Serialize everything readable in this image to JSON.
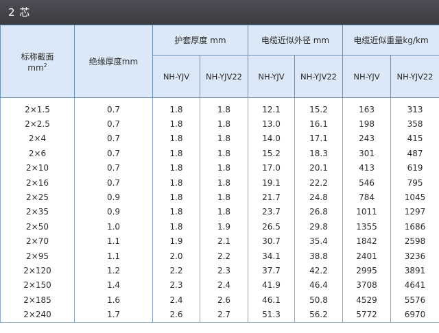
{
  "title": "2 芯",
  "headers": {
    "section": "标称截面",
    "section_unit": "mm",
    "section_unit_sup": "2",
    "insulation": "绝缘厚度mm",
    "sheath": "护套厚度 mm",
    "diameter": "电缆近似外径  mm",
    "weight": "电缆近似重量kg/km",
    "type_a": "NH-YJV",
    "type_b": "NH-YJV22"
  },
  "rows": [
    [
      "2×1.5",
      "0.7",
      "1.8",
      "1.8",
      "12.1",
      "15.2",
      "163",
      "313"
    ],
    [
      "2×2.5",
      "0.7",
      "1.8",
      "1.8",
      "13.0",
      "16.1",
      "198",
      "358"
    ],
    [
      "2×4",
      "0.7",
      "1.8",
      "1.8",
      "14.0",
      "17.1",
      "243",
      "415"
    ],
    [
      "2×6",
      "0.7",
      "1.8",
      "1.8",
      "15.2",
      "18.3",
      "301",
      "487"
    ],
    [
      "2×10",
      "0.7",
      "1.8",
      "1.8",
      "17.0",
      "20.1",
      "413",
      "619"
    ],
    [
      "2×16",
      "0.7",
      "1.8",
      "1.8",
      "19.1",
      "22.2",
      "546",
      "795"
    ],
    [
      "2×25",
      "0.9",
      "1.8",
      "1.8",
      "21.7",
      "24.8",
      "784",
      "1045"
    ],
    [
      "2×35",
      "0.9",
      "1.8",
      "1.8",
      "23.7",
      "26.8",
      "1011",
      "1297"
    ],
    [
      "2×50",
      "1.0",
      "1.8",
      "1.9",
      "26.5",
      "29.8",
      "1355",
      "1686"
    ],
    [
      "2×70",
      "1.1",
      "1.9",
      "2.1",
      "30.7",
      "35.4",
      "1842",
      "2598"
    ],
    [
      "2×95",
      "1.1",
      "2.0",
      "2.2",
      "34.1",
      "38.8",
      "2401",
      "3236"
    ],
    [
      "2×120",
      "1.2",
      "2.2",
      "2.3",
      "37.7",
      "42.2",
      "2995",
      "3891"
    ],
    [
      "2×150",
      "1.4",
      "2.3",
      "2.4",
      "41.9",
      "46.4",
      "3708",
      "4641"
    ],
    [
      "2×185",
      "1.6",
      "2.4",
      "2.6",
      "46.1",
      "50.8",
      "4529",
      "5576"
    ],
    [
      "2×240",
      "1.7",
      "2.6",
      "2.7",
      "51.3",
      "56.2",
      "5772",
      "6970"
    ]
  ],
  "colors": {
    "title_bar": "#45454c",
    "header_bg": "#dbe8f7",
    "grid": "#6f8fb8"
  }
}
